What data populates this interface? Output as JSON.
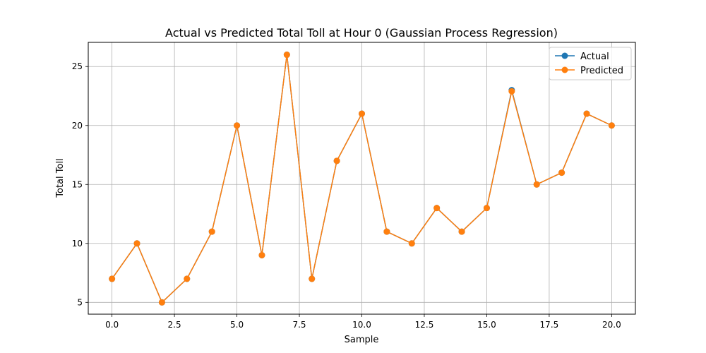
{
  "chart_data": {
    "type": "line",
    "title": "Actual vs Predicted Total Toll at Hour 0 (Gaussian Process Regression)",
    "xlabel": "Sample",
    "ylabel": "Total Toll",
    "xlim": [
      -0.95,
      20.95
    ],
    "ylim": [
      4.0,
      27.05
    ],
    "xticks": [
      0,
      2.5,
      5,
      7.5,
      10,
      12.5,
      15,
      17.5,
      20
    ],
    "xtick_labels": [
      "0.0",
      "2.5",
      "5.0",
      "7.5",
      "10.0",
      "12.5",
      "15.0",
      "17.5",
      "20.0"
    ],
    "yticks": [
      5,
      10,
      15,
      20,
      25
    ],
    "ytick_labels": [
      "5",
      "10",
      "15",
      "20",
      "25"
    ],
    "grid": true,
    "legend_position": "top-right",
    "x": [
      0,
      1,
      2,
      3,
      4,
      5,
      6,
      7,
      8,
      9,
      10,
      11,
      12,
      13,
      14,
      15,
      16,
      17,
      18,
      19,
      20
    ],
    "series": [
      {
        "name": "Actual",
        "color": "#1f77b4",
        "marker": "circle",
        "values": [
          7,
          10,
          5,
          7,
          11,
          20,
          9,
          26,
          7,
          17,
          21,
          11,
          10,
          13,
          11,
          13,
          23,
          15,
          16,
          21,
          20
        ]
      },
      {
        "name": "Predicted",
        "color": "#ff7f0e",
        "marker": "circle",
        "values": [
          7,
          10,
          5,
          7,
          11,
          20,
          9,
          26,
          7,
          17,
          21,
          11,
          10,
          13,
          11,
          13,
          22.9,
          15,
          16,
          21,
          20
        ]
      }
    ]
  }
}
